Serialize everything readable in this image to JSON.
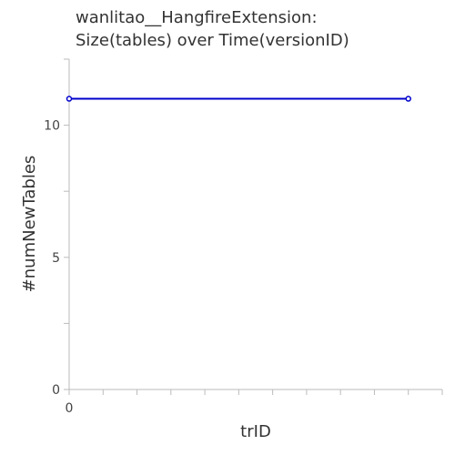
{
  "chart_data": {
    "type": "line",
    "title": [
      "wanlitao__HangfireExtension:",
      "Size(tables) over Time(versionID)"
    ],
    "xlabel": "trID",
    "ylabel": "#numNewTables",
    "x": [
      0,
      10
    ],
    "xlim": [
      0,
      11
    ],
    "ylim": [
      0,
      12.5
    ],
    "x_tick_labels": [
      {
        "value": 0,
        "label": "0"
      }
    ],
    "y_tick_labels": [
      {
        "value": 0,
        "label": "0"
      },
      {
        "value": 5,
        "label": "5"
      },
      {
        "value": 10,
        "label": "10"
      }
    ],
    "series": [
      {
        "values": [
          11,
          11
        ],
        "color": "#0000cc"
      }
    ],
    "grid": false,
    "colors": {
      "line": "#0000cc",
      "axis": "#bbbbbb",
      "text": "#333333"
    }
  }
}
